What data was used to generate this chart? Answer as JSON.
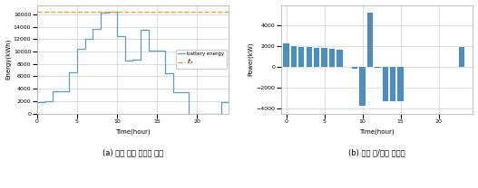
{
  "left": {
    "x": [
      0,
      1,
      2,
      3,
      4,
      5,
      6,
      7,
      8,
      9,
      10,
      11,
      12,
      13,
      14,
      15,
      16,
      17,
      18,
      19,
      20,
      21,
      22,
      23,
      24
    ],
    "y": [
      1800,
      2000,
      3600,
      3600,
      6600,
      10500,
      12000,
      13600,
      16200,
      16400,
      12500,
      8500,
      8700,
      13500,
      10200,
      10200,
      6500,
      3500,
      3500,
      0,
      0,
      0,
      0,
      1900,
      1900
    ],
    "ET_value": 16400,
    "xlabel": "Time(hour)",
    "ylabel": "Energy(kWh)",
    "xlim": [
      0,
      24
    ],
    "ylim": [
      0,
      17500
    ],
    "xticks": [
      0,
      5,
      10,
      15,
      20
    ],
    "yticks": [
      0,
      2000,
      4000,
      6000,
      8000,
      10000,
      12000,
      14000,
      16000
    ],
    "legend_battery": "battery energy",
    "legend_ET": "$\\hat{E}_T$",
    "line_color": "#5a9fc5",
    "dashed_color": "#f0a030",
    "caption": "(a) 전체 누적 전력량 레벨"
  },
  "right": {
    "bar_x": [
      0,
      1,
      2,
      3,
      4,
      5,
      6,
      7,
      9,
      10,
      11,
      12,
      13,
      14,
      15,
      23
    ],
    "bar_heights": [
      2250,
      2000,
      1950,
      1900,
      1870,
      1840,
      1780,
      1650,
      -150,
      -3750,
      5250,
      -100,
      -3300,
      -3300,
      -3300,
      1900
    ],
    "bar_color": "#4a8fc4",
    "xlabel": "Time(hour)",
    "ylabel": "Power(kW)",
    "xlim": [
      -0.7,
      24.5
    ],
    "ylim": [
      -4500,
      6000
    ],
    "xticks": [
      0,
      5,
      10,
      15,
      20
    ],
    "yticks": [
      -4000,
      -2000,
      0,
      2000,
      4000
    ],
    "caption": "(b) 전체 충/방전 스케줄"
  },
  "background_color": "#ffffff",
  "grid_color": "#d8d8d8"
}
